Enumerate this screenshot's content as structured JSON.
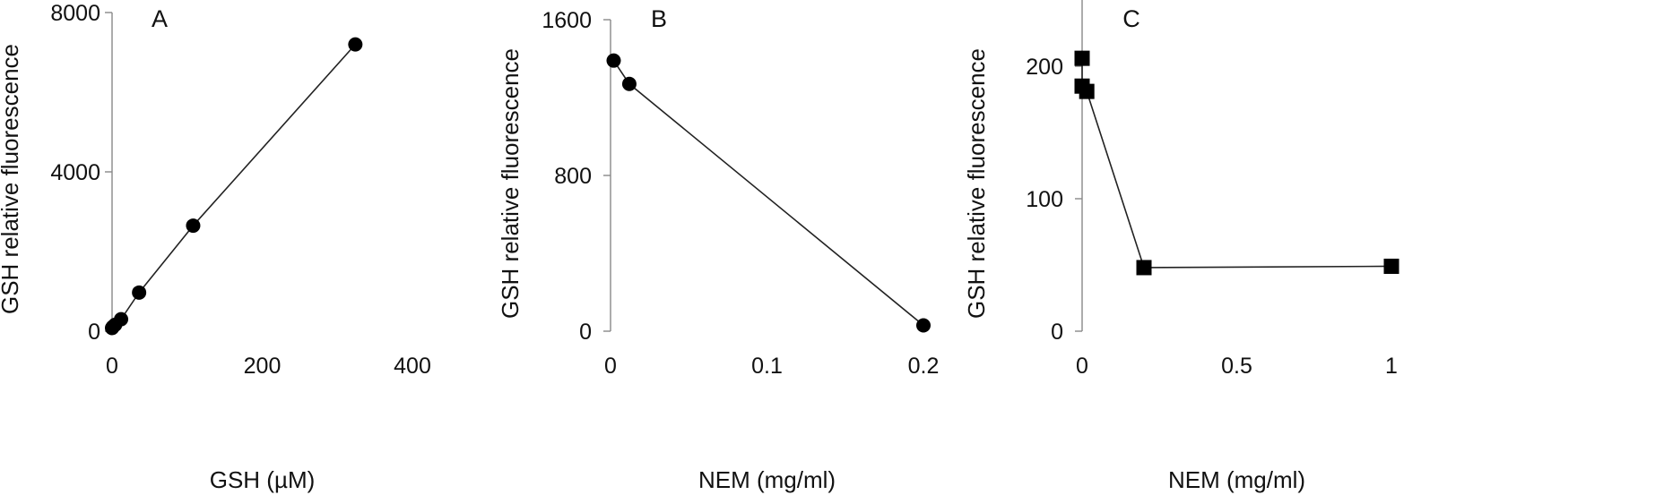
{
  "chart_data": [
    {
      "type": "scatter",
      "panel_label": "A",
      "xlabel": "GSH (µM)",
      "ylabel": "GSH relative fluorescence",
      "xlim": [
        0,
        400
      ],
      "ylim": [
        0,
        8000
      ],
      "xticks": [
        0,
        200,
        400
      ],
      "yticks": [
        0,
        4000,
        8000
      ],
      "grid": false,
      "marker": "circle",
      "connect": "line",
      "series": [
        {
          "x": [
            0,
            1,
            4,
            12,
            36,
            108,
            324
          ],
          "y": [
            80,
            110,
            160,
            300,
            970,
            2650,
            7200
          ]
        }
      ]
    },
    {
      "type": "scatter",
      "panel_label": "B",
      "xlabel": "NEM (mg/ml)",
      "ylabel": "GSH relative fluorescence",
      "xlim": [
        0,
        0.2
      ],
      "ylim": [
        0,
        1600
      ],
      "xticks": [
        0,
        0.1,
        0.2
      ],
      "yticks": [
        0,
        800,
        1600
      ],
      "grid": false,
      "marker": "circle",
      "connect": "line",
      "series": [
        {
          "x": [
            0.002,
            0.012,
            0.2
          ],
          "y": [
            1390,
            1270,
            30
          ]
        }
      ]
    },
    {
      "type": "scatter",
      "panel_label": "C",
      "xlabel": "NEM (mg/ml)",
      "ylabel": "GSH relative fluorescence",
      "xlim": [
        0,
        1
      ],
      "ylim": [
        0,
        250
      ],
      "xticks": [
        0,
        0.5,
        1
      ],
      "yticks": [
        0,
        100,
        200
      ],
      "grid": false,
      "marker": "square",
      "connect": "line",
      "series": [
        {
          "x": [
            0,
            0,
            0.015,
            0.2,
            1
          ],
          "y": [
            206,
            185,
            181,
            48,
            49
          ]
        }
      ]
    }
  ]
}
